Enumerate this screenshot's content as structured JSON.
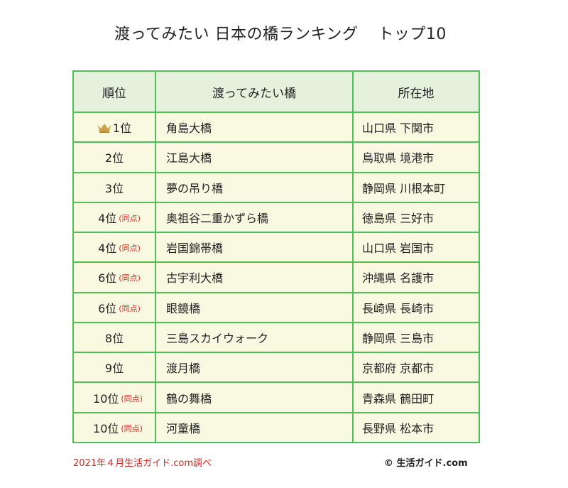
{
  "title_left": "渡ってみたい 日本の橋ランキング",
  "title_right": "トップ10",
  "headers": {
    "rank": "順位",
    "bridge": "渡ってみたい橋",
    "location": "所在地"
  },
  "tie_label": "(同点)",
  "crown_icon": "crown-icon",
  "accent_colors": {
    "border": "#4fbf57",
    "header_bg": "#e6f1dd",
    "cell_bg": "#f9f8e0",
    "tie": "#d22a1f"
  },
  "rows": [
    {
      "rank": "1位",
      "bridge": "角島大橋",
      "location": "山口県 下関市"
    },
    {
      "rank": "2位",
      "bridge": "江島大橋",
      "location": "鳥取県 境港市"
    },
    {
      "rank": "3位",
      "bridge": "夢の吊り橋",
      "location": "静岡県 川根本町"
    },
    {
      "rank": "4位",
      "bridge": "奥祖谷二重かずら橋",
      "location": "徳島県 三好市"
    },
    {
      "rank": "4位",
      "bridge": "岩国錦帯橋",
      "location": "山口県 岩国市"
    },
    {
      "rank": "6位",
      "bridge": "古宇利大橋",
      "location": "沖縄県 名護市"
    },
    {
      "rank": "6位",
      "bridge": "眼鏡橋",
      "location": "長崎県 長崎市"
    },
    {
      "rank": "8位",
      "bridge": "三島スカイウォーク",
      "location": "静岡県 三島市"
    },
    {
      "rank": "9位",
      "bridge": "渡月橋",
      "location": "京都府 京都市"
    },
    {
      "rank": "10位",
      "bridge": "鶴の舞橋",
      "location": "青森県 鶴田町"
    },
    {
      "rank": "10位",
      "bridge": "河童橋",
      "location": "長野県 松本市"
    }
  ],
  "footer_source": "2021年４月生活ガイド.com調べ",
  "footer_copyright": "© 生活ガイド.com"
}
